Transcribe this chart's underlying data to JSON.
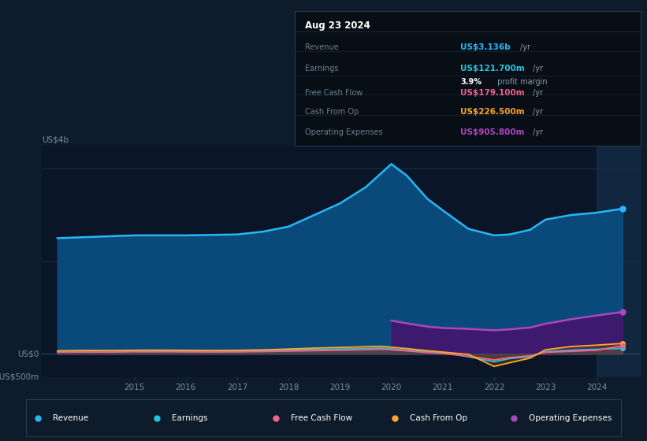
{
  "bg_color": "#0d1b2a",
  "plot_bg_color": "#0a1628",
  "revenue_fill_color": "#0a4a7a",
  "revenue_line_color": "#29b6f6",
  "earnings_line_color": "#26c6da",
  "free_cash_flow_line_color": "#f06292",
  "cash_from_op_line_color": "#ffa726",
  "opex_fill_color": "#3d1a6e",
  "opex_line_color": "#ab47bc",
  "ylim": [
    -500,
    4500
  ],
  "xlim_start": 2013.2,
  "xlim_end": 2024.85,
  "highlight_start": 2024.0,
  "highlight_end": 2024.85,
  "highlight_color": "#1a3a5c",
  "grid_line_color": "#1e3a5a",
  "zero_line_color": "#2a4a6a",
  "axis_text_color": "#7a8fa0",
  "legend_bg_color": "#0d1b2a",
  "legend_border_color": "#2a3a4a",
  "table_bg_color": "#080e16",
  "table_border_color": "#2a3a4a",
  "table_divider_color": "#1a2a3a",
  "legend_items": [
    {
      "label": "Revenue",
      "color": "#29b6f6"
    },
    {
      "label": "Earnings",
      "color": "#26c6da"
    },
    {
      "label": "Free Cash Flow",
      "color": "#f06292"
    },
    {
      "label": "Cash From Op",
      "color": "#ffa726"
    },
    {
      "label": "Operating Expenses",
      "color": "#ab47bc"
    }
  ],
  "years": [
    2013.5,
    2014.0,
    2014.5,
    2015.0,
    2015.5,
    2016.0,
    2016.5,
    2017.0,
    2017.5,
    2018.0,
    2018.5,
    2019.0,
    2019.5,
    2019.8,
    2020.0,
    2020.3,
    2020.7,
    2021.0,
    2021.5,
    2022.0,
    2022.3,
    2022.7,
    2023.0,
    2023.5,
    2024.0,
    2024.5
  ],
  "revenue": [
    2500,
    2520,
    2540,
    2560,
    2560,
    2560,
    2570,
    2580,
    2640,
    2750,
    3000,
    3250,
    3600,
    3900,
    4100,
    3850,
    3350,
    3100,
    2700,
    2560,
    2580,
    2680,
    2900,
    3000,
    3050,
    3136
  ],
  "earnings": [
    60,
    65,
    65,
    70,
    70,
    68,
    65,
    68,
    75,
    85,
    95,
    105,
    115,
    125,
    110,
    80,
    50,
    30,
    -60,
    -170,
    -100,
    -60,
    50,
    80,
    100,
    121.7
  ],
  "free_cash_flow": [
    35,
    40,
    38,
    45,
    45,
    43,
    40,
    43,
    50,
    60,
    70,
    80,
    90,
    100,
    90,
    65,
    30,
    10,
    -50,
    -130,
    -80,
    -40,
    35,
    55,
    80,
    179.1
  ],
  "cash_from_op": [
    65,
    75,
    72,
    80,
    82,
    78,
    75,
    78,
    88,
    105,
    125,
    140,
    155,
    165,
    145,
    115,
    70,
    40,
    -10,
    -270,
    -190,
    -90,
    90,
    160,
    190,
    226.5
  ],
  "opex_years": [
    2020.0,
    2020.3,
    2020.7,
    2021.0,
    2021.5,
    2022.0,
    2022.3,
    2022.7,
    2023.0,
    2023.5,
    2024.0,
    2024.5
  ],
  "opex_values": [
    720,
    660,
    590,
    560,
    540,
    510,
    530,
    570,
    650,
    750,
    830,
    905.8
  ],
  "xtick_years": [
    2015,
    2016,
    2017,
    2018,
    2019,
    2020,
    2021,
    2022,
    2023,
    2024
  ],
  "ytick_positions": [
    0,
    4000
  ],
  "ytick_labels": [
    "US$0",
    "US$4b"
  ],
  "y_top_label": "US$4b",
  "y_neg_label": "-US$500m",
  "table_title": "Aug 23 2024",
  "table_rows": [
    {
      "label": "Revenue",
      "value": "US$3.136b",
      "unit": " /yr",
      "color": "#29b6f6"
    },
    {
      "label": "Earnings",
      "value": "US$121.700m",
      "unit": " /yr",
      "color": "#26c6da",
      "extra": "3.9% profit margin"
    },
    {
      "label": "Free Cash Flow",
      "value": "US$179.100m",
      "unit": " /yr",
      "color": "#f06292"
    },
    {
      "label": "Cash From Op",
      "value": "US$226.500m",
      "unit": " /yr",
      "color": "#ffa726"
    },
    {
      "label": "Operating Expenses",
      "value": "US$905.800m",
      "unit": " /yr",
      "color": "#ab47bc"
    }
  ]
}
